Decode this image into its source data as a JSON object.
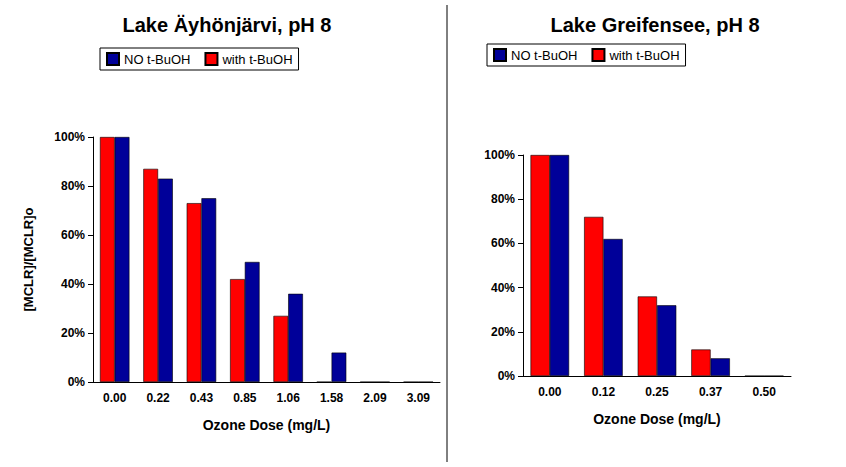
{
  "chart_data": [
    {
      "type": "bar",
      "title": "Lake Äyhönjärvi, pH 8",
      "x_label": "Ozone Dose (mg/L)",
      "y_label": "[MCLR]/[MCLR]o",
      "categories": [
        "0.00",
        "0.22",
        "0.43",
        "0.85",
        "1.06",
        "1.58",
        "2.09",
        "3.09"
      ],
      "series": [
        {
          "name": "with t-BuOH",
          "color": "#ff0000",
          "values": [
            100,
            87,
            73,
            42,
            27,
            0,
            0,
            0
          ]
        },
        {
          "name": "NO t-BuOH",
          "color": "#000099",
          "values": [
            100,
            83,
            75,
            49,
            36,
            12,
            0,
            0
          ]
        }
      ],
      "ylim": [
        0,
        100
      ],
      "yticks": [
        {
          "value": 0,
          "label": "0%"
        },
        {
          "value": 20,
          "label": "20%"
        },
        {
          "value": 40,
          "label": "40%"
        },
        {
          "value": 60,
          "label": "60%"
        },
        {
          "value": 80,
          "label": "80%"
        },
        {
          "value": 100,
          "label": "100%"
        }
      ],
      "legend": "top",
      "grid": false
    },
    {
      "type": "bar",
      "title": "Lake Greifensee, pH 8",
      "x_label": "Ozone Dose (mg/L)",
      "categories": [
        "0.00",
        "0.12",
        "0.25",
        "0.37",
        "0.50"
      ],
      "series": [
        {
          "name": "with t-BuOH",
          "color": "#ff0000",
          "values": [
            100,
            72,
            36,
            12,
            0
          ]
        },
        {
          "name": "NO t-BuOH",
          "color": "#000099",
          "values": [
            100,
            62,
            32,
            8,
            0
          ]
        }
      ],
      "ylim": [
        0,
        100
      ],
      "yticks": [
        {
          "value": 0,
          "label": "0%"
        },
        {
          "value": 20,
          "label": "20%"
        },
        {
          "value": 40,
          "label": "40%"
        },
        {
          "value": 60,
          "label": "60%"
        },
        {
          "value": 80,
          "label": "80%"
        },
        {
          "value": 100,
          "label": "100%"
        }
      ],
      "legend": "top",
      "grid": false
    }
  ]
}
